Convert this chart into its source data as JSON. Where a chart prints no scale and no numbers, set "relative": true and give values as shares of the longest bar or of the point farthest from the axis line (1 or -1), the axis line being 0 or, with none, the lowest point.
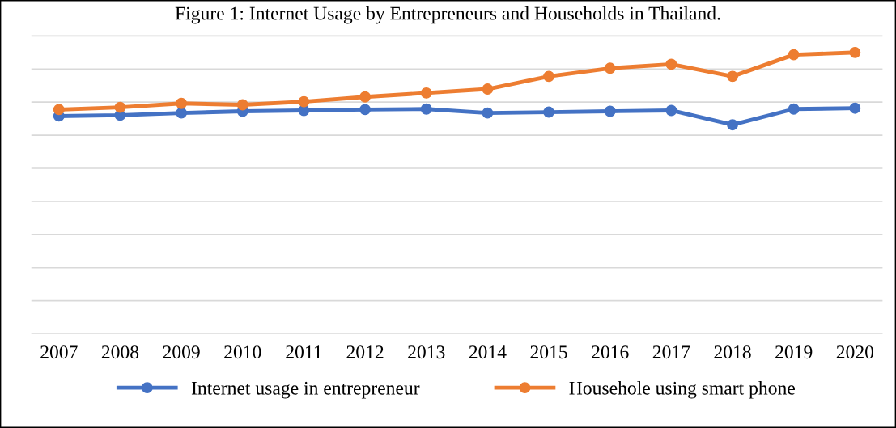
{
  "chart_data": {
    "type": "line",
    "title": "Figure 1: Internet Usage by Entrepreneurs and Households in Thailand.",
    "categories": [
      "2007",
      "2008",
      "2009",
      "2010",
      "2011",
      "2012",
      "2013",
      "2014",
      "2015",
      "2016",
      "2017",
      "2018",
      "2019",
      "2020"
    ],
    "relative": true,
    "grid": "y",
    "legend": "bottom",
    "marker": "circle",
    "line_style": "solid",
    "series": [
      {
        "name": "Internet usage in entrepreneur",
        "color": "#4472c4",
        "values": [
          0.774,
          0.777,
          0.785,
          0.791,
          0.794,
          0.797,
          0.799,
          0.785,
          0.788,
          0.791,
          0.794,
          0.743,
          0.799,
          0.802
        ]
      },
      {
        "name": "Househole using smart phone",
        "color": "#ed7d31",
        "values": [
          0.797,
          0.805,
          0.819,
          0.814,
          0.825,
          0.842,
          0.856,
          0.87,
          0.915,
          0.944,
          0.958,
          0.915,
          0.992,
          1
        ]
      }
    ]
  }
}
